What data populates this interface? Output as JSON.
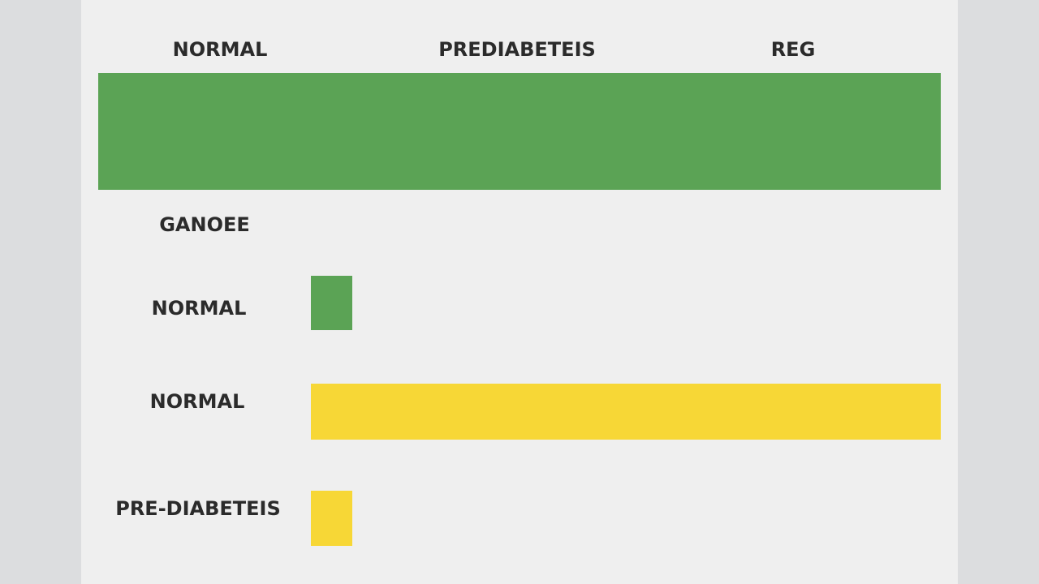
{
  "header": {
    "labels": [
      "NORMAL",
      "PREDIABETEIS",
      "REG"
    ]
  },
  "section": {
    "label": "GANOEE"
  },
  "rows": [
    {
      "label": "NORMAL"
    },
    {
      "label": "NORMAL"
    },
    {
      "label": "PRE-DIABETEIS"
    }
  ]
}
